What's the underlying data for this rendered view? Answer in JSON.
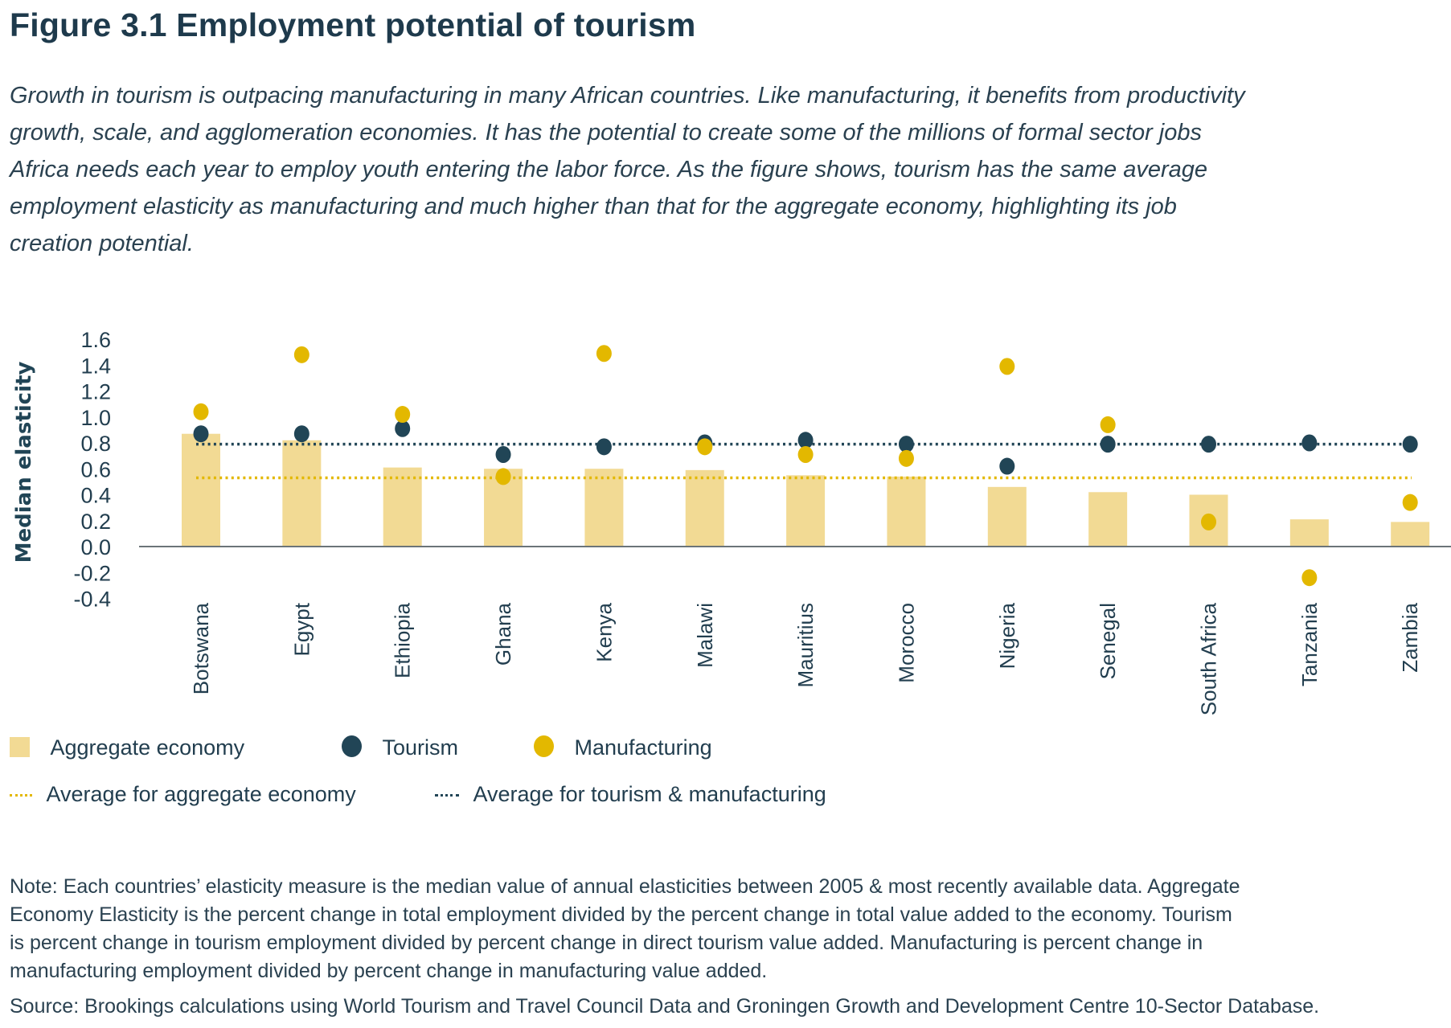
{
  "title": "Figure 3.1 Employment potential of tourism",
  "subtitle_lines": [
    "Growth in tourism is outpacing manufacturing in many African countries. Like manufacturing, it benefits from productivity",
    "growth, scale, and agglomeration economies. It has the potential to create some of the millions of formal sector jobs",
    "Africa needs each year to employ youth entering the labor force. As the figure shows, tourism has the same average",
    "employment elasticity as manufacturing and much higher than that for the aggregate economy, highlighting its job",
    "creation potential."
  ],
  "chart_data": {
    "type": "bar",
    "ylabel": "Median elasticity",
    "ylim": [
      -0.4,
      1.6
    ],
    "yticks": [
      "1.6",
      "1.4",
      "1.2",
      "1.0",
      "0.8",
      "0.6",
      "0.4",
      "0.2",
      "0.0",
      "-0.2",
      "-0.4"
    ],
    "ytick_values": [
      1.6,
      1.4,
      1.2,
      1.0,
      0.8,
      0.6,
      0.4,
      0.2,
      0.0,
      -0.2,
      -0.4
    ],
    "grid": false,
    "legend_placement": "bottom-left",
    "categories": [
      "Botswana",
      "Egypt",
      "Ethiopia",
      "Ghana",
      "Kenya",
      "Malawi",
      "Mauritius",
      "Morocco",
      "Nigeria",
      "Senegal",
      "South Africa",
      "Tanzania",
      "Zambia"
    ],
    "series": [
      {
        "name": "Aggregate economy",
        "kind": "bar",
        "color": "#F2DA94",
        "values": [
          0.87,
          0.82,
          0.61,
          0.6,
          0.6,
          0.59,
          0.55,
          0.54,
          0.46,
          0.42,
          0.4,
          0.21,
          0.19
        ]
      },
      {
        "name": "Tourism",
        "kind": "dot",
        "color": "#214556",
        "values": [
          0.87,
          0.87,
          0.91,
          0.71,
          0.77,
          0.8,
          0.82,
          0.79,
          0.62,
          0.79,
          0.79,
          0.8,
          0.79
        ]
      },
      {
        "name": "Manufacturing",
        "kind": "dot",
        "color": "#E3B800",
        "values": [
          1.04,
          1.48,
          1.02,
          0.54,
          1.49,
          0.77,
          0.71,
          0.68,
          1.39,
          0.94,
          0.19,
          -0.24,
          0.34
        ]
      }
    ],
    "reference_lines": [
      {
        "name": "Average for aggregate economy",
        "value": 0.53,
        "color": "#E3B800",
        "style": "dotted"
      },
      {
        "name": "Average for tourism & manufacturing",
        "value": 0.79,
        "color": "#214556",
        "style": "dotted"
      }
    ]
  },
  "notes_lines": [
    "Note: Each countries’ elasticity measure is the median value of annual elasticities between 2005 & most recently available data. Aggregate",
    "Economy Elasticity is the percent change in total employment divided by the percent change in total value added to the economy. Tourism",
    "is percent change in tourism employment divided by percent change in direct tourism value added. Manufacturing is percent change in",
    "manufacturing employment divided by percent change in manufacturing value added."
  ],
  "source": "Source: Brookings calculations using World Tourism and Travel Council Data and Groningen Growth and Development Centre 10-Sector Database."
}
